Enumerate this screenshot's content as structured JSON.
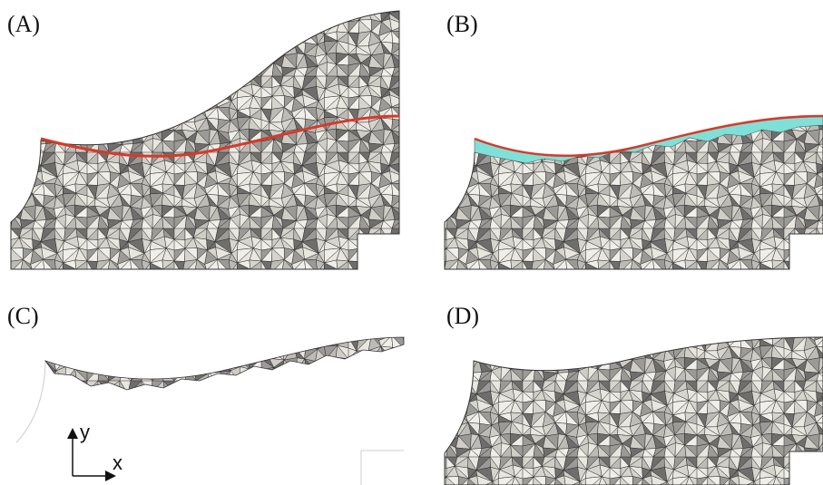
{
  "panels": [
    {
      "label": "(A)"
    },
    {
      "label": "(B)"
    },
    {
      "label": "(C)"
    },
    {
      "label": "(D)"
    }
  ],
  "axes": {
    "y": "y",
    "x": "x"
  }
}
